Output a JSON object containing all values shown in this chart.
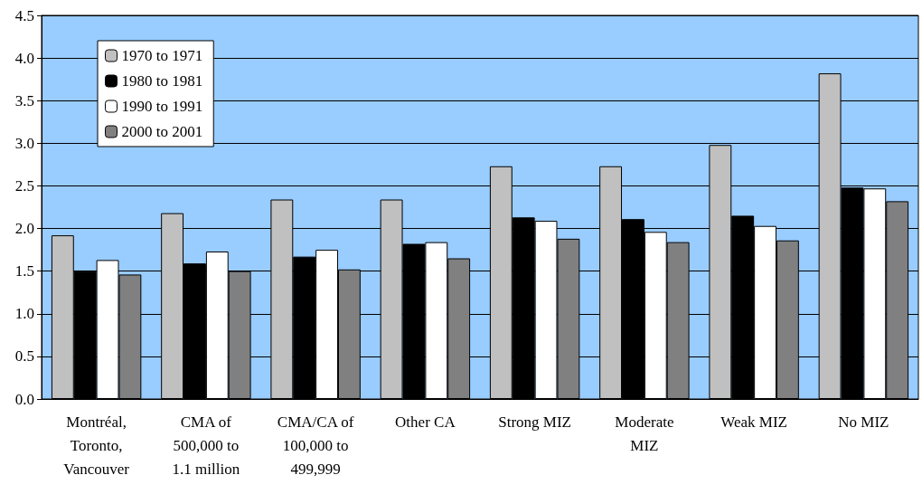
{
  "chart_data": {
    "type": "bar",
    "categories": [
      "Montréal,\nToronto,\nVancouver",
      "CMA of\n500,000 to\n1.1 million",
      "CMA/CA of\n100,000 to\n499,999",
      "Other CA",
      "Strong MIZ",
      "Moderate\nMIZ",
      "Weak MIZ",
      "No MIZ"
    ],
    "series": [
      {
        "name": "1970 to 1971",
        "color": "#c0c0c0",
        "values": [
          1.92,
          2.18,
          2.34,
          2.34,
          2.73,
          2.73,
          2.98,
          3.82
        ]
      },
      {
        "name": "1980 to 1981",
        "color": "#000000",
        "values": [
          1.5,
          1.59,
          1.67,
          1.82,
          2.13,
          2.11,
          2.15,
          2.48
        ]
      },
      {
        "name": "1990 to 1991",
        "color": "#ffffff",
        "values": [
          1.63,
          1.73,
          1.75,
          1.84,
          2.09,
          1.96,
          2.03,
          2.47
        ]
      },
      {
        "name": "2000 to 2001",
        "color": "#808080",
        "values": [
          1.46,
          1.5,
          1.52,
          1.65,
          1.88,
          1.84,
          1.86,
          2.32
        ]
      }
    ],
    "ylim": [
      0,
      4.5
    ],
    "yticks": [
      {
        "value": 0,
        "label": "0.0"
      },
      0.5,
      {
        "value": 1,
        "label": "1.0"
      },
      1.5,
      {
        "value": 2,
        "label": "2.0"
      },
      2.5,
      {
        "value": 3,
        "label": "3.0"
      },
      3.5,
      {
        "value": 4,
        "label": "4.0"
      },
      4.5
    ],
    "grid": "y",
    "legend": "top left"
  }
}
